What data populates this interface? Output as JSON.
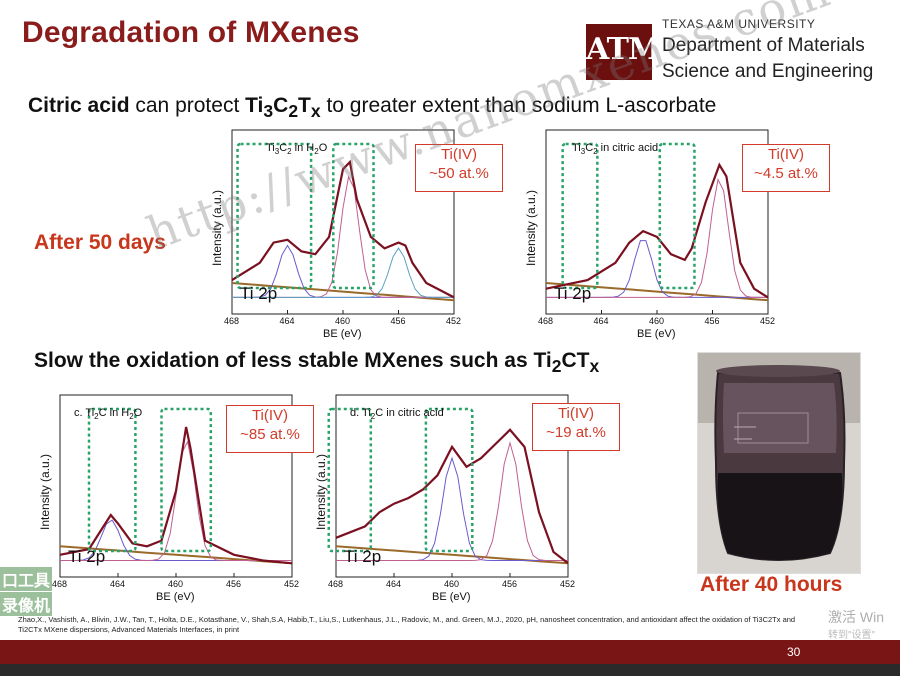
{
  "slide": {
    "title": "Degradation of MXenes",
    "university": "TEXAS A&M UNIVERSITY",
    "logo_text": "ATM",
    "department_line1": "Department of Materials",
    "department_line2": "Science and Engineering",
    "headline1": {
      "b1": "Citric acid",
      "t1": " can protect ",
      "b2": "Ti",
      "b2sub1": "3",
      "b3": "C",
      "b3sub": "2",
      "b4": "T",
      "b4sub": "x",
      "t2": " to greater extent than sodium L-ascorbate"
    },
    "headline2": {
      "t1": "Slow the oxidation of less stable MXenes such as Ti",
      "sub1": "2",
      "t2": "CT",
      "sub2": "x"
    },
    "after_50_days": "After 50 days",
    "after_40_hours": "After 40 hours",
    "citation": "Zhao,X., Vashisth, A., Blivin, J.W., Tan, T., Holta, D.E., Kotasthane, V., Shah,S.A, Habib,T., Liu,S., Lutkenhaus, J.L., Radovic, M., and. Green, M.J., 2020, pH, nanosheet concentration, and antioxidant affect the oxidation of Ti3C2Tx and Ti2CTx MXene dispersions, Advanced Materials Interfaces, in print",
    "page_number": "30",
    "watermark": "http://www.nanomxenes.com",
    "os_watermark_1": "激活 Win",
    "os_watermark_2": "转到\"设置\"",
    "tool_mark_1": "口工具",
    "tool_mark_2": "录像机"
  },
  "colors": {
    "title": "#8a1c1c",
    "accent_red": "#d23b2a",
    "footer": "#7a1515",
    "envelope": "#7b1020",
    "background_fit": "#9a6a2a",
    "dotted_box": "#2aa36a"
  },
  "chart_data": [
    {
      "type": "line",
      "panel_label": "Ti3C2 in H2O",
      "panel_label_parts": {
        "a": "Ti",
        "s1": "3",
        "b": "C",
        "s2": "2",
        "c": " in H",
        "s3": "2",
        "d": "O"
      },
      "xlabel": "BE (eV)",
      "ylabel": "Intensity (a.u.)",
      "core_level": "Ti 2p",
      "annotation": [
        "Ti(IV)",
        "~50 at.%"
      ],
      "x_ticks": [
        "468",
        "464",
        "460",
        "456",
        "452"
      ],
      "xlim": [
        468,
        452
      ],
      "envelope": [
        [
          468,
          0.18
        ],
        [
          466,
          0.3
        ],
        [
          465,
          0.44
        ],
        [
          464,
          0.46
        ],
        [
          463,
          0.38
        ],
        [
          462,
          0.36
        ],
        [
          461,
          0.48
        ],
        [
          460,
          0.95
        ],
        [
          459.5,
          1.0
        ],
        [
          459,
          0.74
        ],
        [
          458,
          0.48
        ],
        [
          457,
          0.4
        ],
        [
          456,
          0.44
        ],
        [
          455.5,
          0.42
        ],
        [
          455,
          0.3
        ],
        [
          454,
          0.16
        ],
        [
          452,
          0.06
        ]
      ]
    },
    {
      "type": "line",
      "panel_label": "Ti3C2 in citric acid",
      "panel_label_parts": {
        "a": "Ti",
        "s1": "3",
        "b": "C",
        "s2": "2",
        "c": " in citric acid"
      },
      "xlabel": "BE (eV)",
      "ylabel": "Intensity (a.u.)",
      "core_level": "Ti 2p",
      "annotation": [
        "Ti(IV)",
        "~4.5 at.%"
      ],
      "x_ticks": [
        "468",
        "464",
        "460",
        "456",
        "452"
      ],
      "xlim": [
        468,
        452
      ],
      "envelope": [
        [
          468,
          0.12
        ],
        [
          465,
          0.18
        ],
        [
          463,
          0.3
        ],
        [
          462,
          0.44
        ],
        [
          461,
          0.52
        ],
        [
          460,
          0.48
        ],
        [
          459,
          0.36
        ],
        [
          458,
          0.32
        ],
        [
          457.5,
          0.4
        ],
        [
          456.5,
          0.72
        ],
        [
          455.5,
          0.98
        ],
        [
          455,
          0.9
        ],
        [
          454.5,
          0.6
        ],
        [
          454,
          0.3
        ],
        [
          453,
          0.12
        ],
        [
          452,
          0.06
        ]
      ]
    },
    {
      "type": "line",
      "panel_label": "c. Ti2C in H2O",
      "panel_label_parts": {
        "a": "c. Ti",
        "s1": "2",
        "b": "C in H",
        "s2": "2",
        "c": "O"
      },
      "xlabel": "BE (eV)",
      "ylabel": "Intensity (a.u.)",
      "core_level": "Ti 2p",
      "annotation": [
        "Ti(IV)",
        "~85 at.%"
      ],
      "x_ticks": [
        "468",
        "464",
        "460",
        "456",
        "452"
      ],
      "xlim": [
        468,
        452
      ],
      "envelope": [
        [
          468,
          0.1
        ],
        [
          466,
          0.14
        ],
        [
          465,
          0.3
        ],
        [
          464.5,
          0.38
        ],
        [
          464,
          0.32
        ],
        [
          463,
          0.18
        ],
        [
          462,
          0.16
        ],
        [
          461,
          0.2
        ],
        [
          460,
          0.55
        ],
        [
          459.3,
          1.0
        ],
        [
          459,
          0.85
        ],
        [
          458,
          0.2
        ],
        [
          456,
          0.1
        ],
        [
          454,
          0.06
        ],
        [
          452,
          0.04
        ]
      ]
    },
    {
      "type": "line",
      "panel_label": "d. Ti2C in citric acid",
      "panel_label_parts": {
        "a": "d. Ti",
        "s1": "2",
        "b": "C in citric acid"
      },
      "xlabel": "BE (eV)",
      "ylabel": "Intensity (a.u.)",
      "core_level": "Ti 2p",
      "annotation": [
        "Ti(IV)",
        "~19 at.%"
      ],
      "x_ticks": [
        "468",
        "464",
        "460",
        "456",
        "452"
      ],
      "xlim": [
        468,
        452
      ],
      "envelope": [
        [
          468,
          0.22
        ],
        [
          466,
          0.3
        ],
        [
          465,
          0.4
        ],
        [
          464,
          0.46
        ],
        [
          463,
          0.5
        ],
        [
          462,
          0.56
        ],
        [
          461,
          0.66
        ],
        [
          460,
          0.86
        ],
        [
          459,
          0.72
        ],
        [
          458,
          0.78
        ],
        [
          457,
          0.88
        ],
        [
          456,
          0.98
        ],
        [
          455,
          0.86
        ],
        [
          454,
          0.4
        ],
        [
          453,
          0.12
        ],
        [
          452,
          0.04
        ]
      ]
    }
  ]
}
